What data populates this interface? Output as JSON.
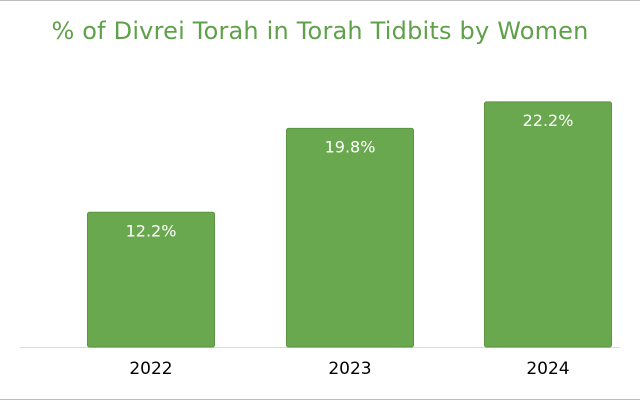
{
  "title": "% of Divrei Torah in Torah Tidbits by Women",
  "colors": {
    "bar": "#6aa84f",
    "bar_edge": "#5b9443",
    "title": "#5fa14a",
    "value_label": "#ffffff",
    "tick_label": "#000000",
    "frame": "#bdbdbd"
  },
  "chart_data": {
    "type": "bar",
    "title": "% of Divrei Torah in Torah Tidbits by Women",
    "categories": [
      "2022",
      "2023",
      "2024"
    ],
    "values": [
      12.2,
      19.8,
      22.2
    ],
    "value_labels": [
      "12.2%",
      "19.8%",
      "22.2%"
    ],
    "xlabel": "",
    "ylabel": "",
    "ylim": [
      0,
      25
    ],
    "grid": false,
    "legend": "none"
  }
}
